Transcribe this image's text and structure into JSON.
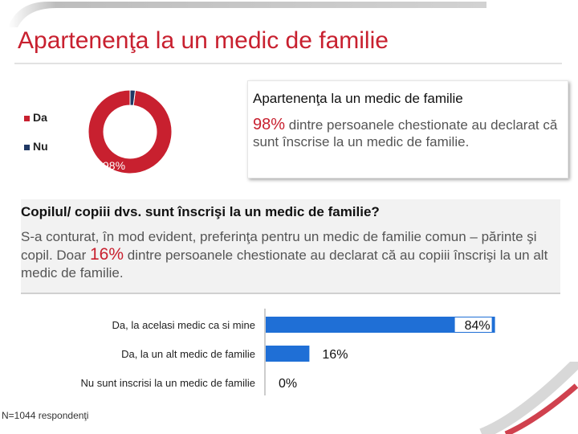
{
  "page": {
    "title": "Apartenenţa la un medic de familie",
    "footnote": "N=1044 respondenţi"
  },
  "colors": {
    "red": "#c8202f",
    "navy": "#1f3864",
    "blue": "#1f6fd6"
  },
  "info_box": {
    "title": "Apartenenţa la un medic de familie",
    "pct": "98%",
    "text": "dintre persoanele chestionate au declarat că sunt înscrise la un medic de familie."
  },
  "question": {
    "title": "Copilul/ copiii dvs. sunt înscrişi la un medic de familie?",
    "text_before": "S-a conturat, în mod evident, preferinţa pentru un medic de familie comun – părinte şi copil. Doar",
    "pct": "16%",
    "text_after": "dintre persoanele chestionate au declarat că au copiii înscrişi la un alt medic de familie."
  },
  "chart_data": [
    {
      "type": "pie",
      "subtype": "donut",
      "series": [
        {
          "name": "Da",
          "value": 98
        },
        {
          "name": "Nu",
          "value": 2
        }
      ],
      "data_labels": [
        "98%"
      ],
      "legend": [
        "Da",
        "Nu"
      ],
      "legend_position": "left"
    },
    {
      "type": "bar",
      "orientation": "horizontal",
      "categories": [
        "Da, la acelasi medic ca si mine",
        "Da, la un alt medic de familie",
        "Nu sunt inscrisi la un medic de familie"
      ],
      "values": [
        84,
        16,
        0
      ],
      "data_labels": [
        "84%",
        "16%",
        "0%"
      ],
      "xlim": [
        0,
        100
      ]
    }
  ]
}
